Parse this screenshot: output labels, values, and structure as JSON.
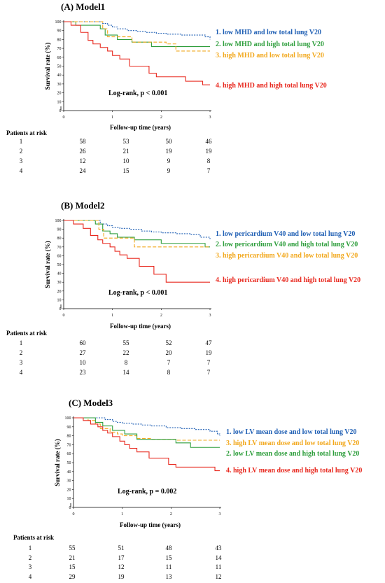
{
  "chart_data": [
    {
      "type": "line",
      "title": "(A) Model1",
      "xlabel": "Follow-up time (years)",
      "ylabel": "Survival rate (%)",
      "xlim": [
        0,
        3
      ],
      "ylim": [
        0,
        100
      ],
      "x_ticks": [
        "0",
        "1",
        "2",
        "3"
      ],
      "y_ticks": [
        "0",
        "10",
        "20",
        "30",
        "40",
        "50",
        "60",
        "70",
        "80",
        "90",
        "100"
      ],
      "annotation": "Log-rank, p < 0.001",
      "series": [
        {
          "name": "1. low MHD and low total lung V20",
          "color": "#1f5fb4",
          "style": "dotted",
          "x": [
            0,
            0.72,
            0.8,
            0.9,
            1.0,
            1.1,
            1.3,
            1.5,
            1.7,
            1.9,
            2.1,
            2.4,
            2.7,
            2.9,
            3.0
          ],
          "y": [
            100,
            100,
            98,
            96,
            94,
            92,
            90,
            89,
            88,
            87,
            86,
            85,
            85,
            83,
            80
          ]
        },
        {
          "name": "2. low MHD and high total lung V20",
          "color": "#2e9e3c",
          "style": "solid",
          "x": [
            0,
            0.25,
            0.75,
            0.85,
            1.1,
            1.4,
            1.8,
            3.0
          ],
          "y": [
            100,
            96,
            92,
            85,
            80,
            77,
            72,
            72
          ]
        },
        {
          "name": "3. high MHD and low total lung V20",
          "color": "#f2a81d",
          "style": "dashed",
          "x": [
            0,
            0.8,
            0.9,
            1.4,
            2.1,
            2.3,
            3.0
          ],
          "y": [
            100,
            92,
            83,
            77,
            75,
            67,
            67
          ]
        },
        {
          "name": "4. high MHD and high total lung V20",
          "color": "#e8281e",
          "style": "solid",
          "x": [
            0,
            0.15,
            0.35,
            0.5,
            0.6,
            0.75,
            0.9,
            1.0,
            1.15,
            1.35,
            1.5,
            1.75,
            1.9,
            2.5,
            2.85,
            3.0
          ],
          "y": [
            100,
            96,
            88,
            79,
            75,
            71,
            67,
            62,
            58,
            50,
            50,
            42,
            38,
            33,
            29,
            29
          ]
        }
      ]
    },
    {
      "type": "line",
      "title": "(B) Model2",
      "xlabel": "Follow-up time (years)",
      "ylabel": "Survival rate (%)",
      "xlim": [
        0,
        3
      ],
      "ylim": [
        0,
        100
      ],
      "x_ticks": [
        "0",
        "1",
        "2",
        "3"
      ],
      "y_ticks": [
        "0",
        "10",
        "20",
        "30",
        "40",
        "50",
        "60",
        "70",
        "80",
        "90",
        "100"
      ],
      "annotation": "Log-rank, p < 0.001",
      "series": [
        {
          "name": "1. low pericardium V40 and low total lung V20",
          "color": "#1f5fb4",
          "style": "dotted",
          "x": [
            0,
            0.6,
            0.75,
            0.9,
            1.0,
            1.15,
            1.35,
            1.6,
            1.8,
            2.0,
            2.3,
            2.6,
            2.8,
            3.0
          ],
          "y": [
            100,
            100,
            96,
            94,
            92,
            91,
            90,
            88,
            87,
            86,
            85,
            84,
            81,
            79
          ]
        },
        {
          "name": "2. low pericardium V40 and high total lung V20",
          "color": "#2e9e3c",
          "style": "solid",
          "x": [
            0,
            0.65,
            0.8,
            0.95,
            1.1,
            1.45,
            2.0,
            2.4,
            2.9,
            3.0
          ],
          "y": [
            100,
            96,
            88,
            85,
            81,
            78,
            74,
            74,
            70,
            70
          ]
        },
        {
          "name": "3. high pericardium V40 and low total lung V20",
          "color": "#f2a81d",
          "style": "dashed",
          "x": [
            0,
            0.72,
            0.82,
            1.0,
            1.45,
            3.0
          ],
          "y": [
            100,
            90,
            80,
            80,
            70,
            70
          ]
        },
        {
          "name": "4. high pericardium V40 and high total lung V20",
          "color": "#e8281e",
          "style": "solid",
          "x": [
            0,
            0.2,
            0.4,
            0.55,
            0.7,
            0.8,
            0.95,
            1.05,
            1.15,
            1.3,
            1.55,
            1.85,
            2.1,
            3.0
          ],
          "y": [
            100,
            96,
            91,
            83,
            78,
            74,
            70,
            65,
            61,
            57,
            48,
            39,
            30,
            30
          ]
        }
      ]
    },
    {
      "type": "line",
      "title": "(C) Model3",
      "xlabel": "Follow-up time (years)",
      "ylabel": "Survival rate (%)",
      "xlim": [
        0,
        3
      ],
      "ylim": [
        0,
        100
      ],
      "x_ticks": [
        "0",
        "1",
        "2",
        "3"
      ],
      "y_ticks": [
        "0",
        "10",
        "20",
        "30",
        "40",
        "50",
        "60",
        "70",
        "80",
        "90",
        "100"
      ],
      "annotation": "Log-rank, p = 0.002",
      "series": [
        {
          "name": "1. low LV mean dose and low total lung V20",
          "color": "#1f5fb4",
          "style": "dotted",
          "x": [
            0,
            0.5,
            0.65,
            0.8,
            0.9,
            1.0,
            1.2,
            1.4,
            1.6,
            1.9,
            2.2,
            2.5,
            2.8,
            2.95,
            3.0
          ],
          "y": [
            100,
            100,
            98,
            96,
            95,
            94,
            93,
            92,
            91,
            89,
            88,
            87,
            85,
            82,
            80
          ]
        },
        {
          "name": "3. high LV mean dose and low total lung V20",
          "color": "#f2a81d",
          "style": "dashed",
          "x": [
            0,
            0.3,
            0.45,
            0.55,
            0.75,
            0.9,
            1.0,
            1.3,
            1.6,
            2.1,
            2.45,
            3.0
          ],
          "y": [
            100,
            97,
            93,
            88,
            84,
            82,
            80,
            77,
            76,
            75,
            75,
            75
          ]
        },
        {
          "name": "2. low LV mean dose and high total lung V20",
          "color": "#2e9e3c",
          "style": "solid",
          "x": [
            0,
            0.45,
            0.6,
            0.8,
            1.05,
            1.3,
            1.6,
            2.1,
            2.4,
            3.0
          ],
          "y": [
            100,
            95,
            91,
            86,
            82,
            76,
            76,
            72,
            67,
            67
          ]
        },
        {
          "name": "4. high LV mean dose and high total lung V20",
          "color": "#e8281e",
          "style": "solid",
          "x": [
            0,
            0.2,
            0.35,
            0.5,
            0.6,
            0.7,
            0.8,
            0.95,
            1.05,
            1.15,
            1.3,
            1.55,
            1.75,
            1.95,
            2.1,
            2.6,
            2.9,
            3.0
          ],
          "y": [
            100,
            97,
            93,
            90,
            86,
            83,
            79,
            74,
            70,
            66,
            62,
            55,
            55,
            48,
            45,
            45,
            41,
            41
          ]
        }
      ]
    }
  ],
  "risk_tables": [
    {
      "header": "Patients at risk",
      "rows": [
        {
          "label": "1",
          "values": [
            "58",
            "53",
            "50",
            "46"
          ]
        },
        {
          "label": "2",
          "values": [
            "26",
            "21",
            "19",
            "19"
          ]
        },
        {
          "label": "3",
          "values": [
            "12",
            "10",
            "9",
            "8"
          ]
        },
        {
          "label": "4",
          "values": [
            "24",
            "15",
            "9",
            "7"
          ]
        }
      ]
    },
    {
      "header": "Patients at risk",
      "rows": [
        {
          "label": "1",
          "values": [
            "60",
            "55",
            "52",
            "47"
          ]
        },
        {
          "label": "2",
          "values": [
            "27",
            "22",
            "20",
            "19"
          ]
        },
        {
          "label": "3",
          "values": [
            "10",
            "8",
            "7",
            "7"
          ]
        },
        {
          "label": "4",
          "values": [
            "23",
            "14",
            "8",
            "7"
          ]
        }
      ]
    },
    {
      "header": "Patients at risk",
      "rows": [
        {
          "label": "1",
          "values": [
            "55",
            "51",
            "48",
            "43"
          ]
        },
        {
          "label": "2",
          "values": [
            "21",
            "17",
            "15",
            "14"
          ]
        },
        {
          "label": "3",
          "values": [
            "15",
            "12",
            "11",
            "11"
          ]
        },
        {
          "label": "4",
          "values": [
            "29",
            "19",
            "13",
            "12"
          ]
        }
      ]
    }
  ]
}
